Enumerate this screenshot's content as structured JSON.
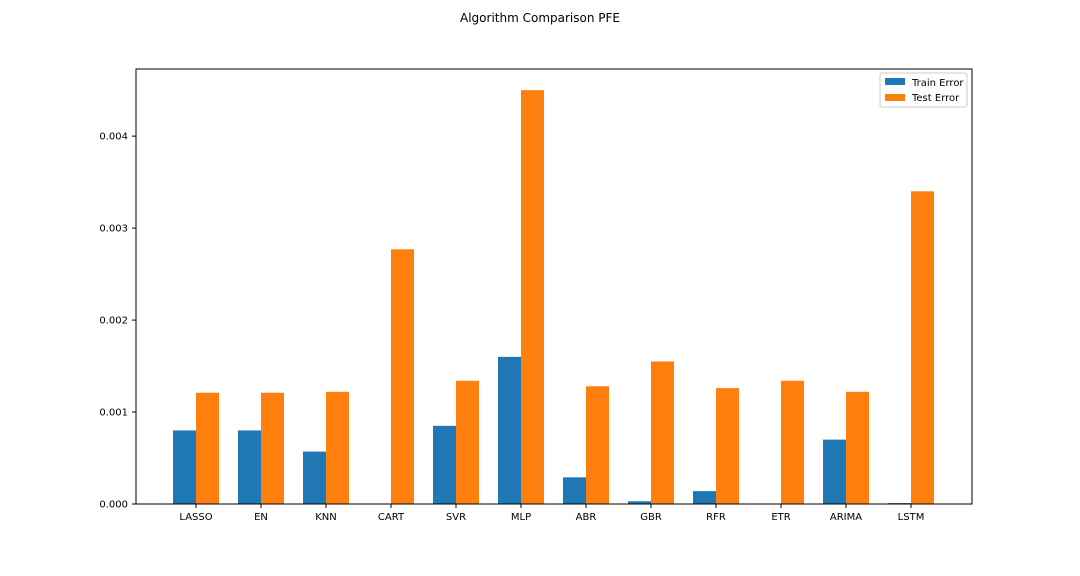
{
  "chart_data": {
    "type": "bar",
    "title": "Algorithm Comparison PFE",
    "xlabel": "",
    "ylabel": "",
    "categories": [
      "LASSO",
      "EN",
      "KNN",
      "CART",
      "SVR",
      "MLP",
      "ABR",
      "GBR",
      "RFR",
      "ETR",
      "ARIMA",
      "LSTM"
    ],
    "series": [
      {
        "name": "Train Error",
        "color": "#1f77b4",
        "values": [
          0.0008,
          0.0008,
          0.00057,
          0.0,
          0.00085,
          0.0016,
          0.00029,
          3e-05,
          0.00014,
          0.0,
          0.0007,
          1e-05
        ]
      },
      {
        "name": "Test Error",
        "color": "#ff7f0e",
        "values": [
          0.00121,
          0.00121,
          0.00122,
          0.00277,
          0.00134,
          0.0045,
          0.00128,
          0.00155,
          0.00126,
          0.00134,
          0.00122,
          0.0034
        ]
      }
    ],
    "yticks": [
      0.0,
      0.001,
      0.002,
      0.003,
      0.004
    ],
    "ytick_labels": [
      "0.000",
      "0.001",
      "0.002",
      "0.003",
      "0.004"
    ],
    "ylim": [
      0,
      0.00473
    ],
    "grid": false,
    "legend_position": "upper right"
  }
}
